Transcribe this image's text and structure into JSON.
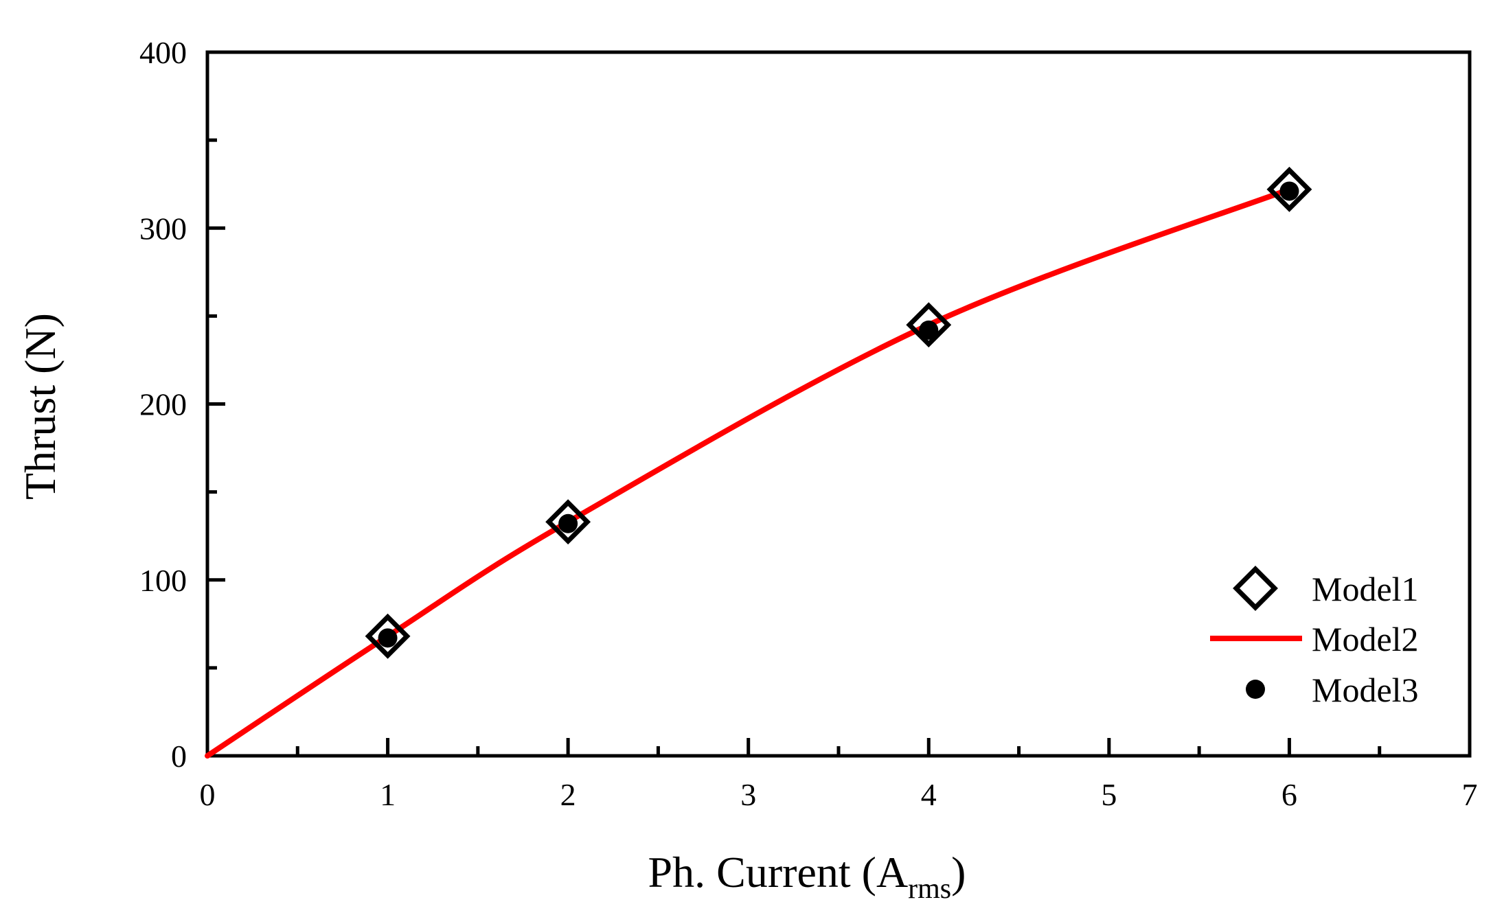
{
  "chart_data": {
    "type": "line",
    "title": "",
    "xlabel": "Ph. Current (A",
    "xlabel_sub": "rms",
    "xlabel_close": ")",
    "ylabel": "Thrust (N)",
    "xlim": [
      0,
      7
    ],
    "ylim": [
      0,
      400
    ],
    "x_ticks": [
      0,
      1,
      2,
      3,
      4,
      5,
      6,
      7
    ],
    "y_ticks": [
      0,
      100,
      200,
      300,
      400
    ],
    "grid": false,
    "legend_position": "bottom-right",
    "series": [
      {
        "name": "Model1",
        "marker": "open-diamond",
        "color": "#000000",
        "x": [
          1,
          2,
          4,
          6
        ],
        "y": [
          68,
          133,
          245,
          322
        ]
      },
      {
        "name": "Model2",
        "marker": "line",
        "color": "#ff0000",
        "x": [
          0,
          1,
          2,
          4,
          6
        ],
        "y": [
          0,
          68,
          133,
          245,
          322
        ]
      },
      {
        "name": "Model3",
        "marker": "filled-circle",
        "color": "#000000",
        "x": [
          1,
          2,
          4,
          6
        ],
        "y": [
          67,
          132,
          242,
          321
        ]
      }
    ]
  }
}
